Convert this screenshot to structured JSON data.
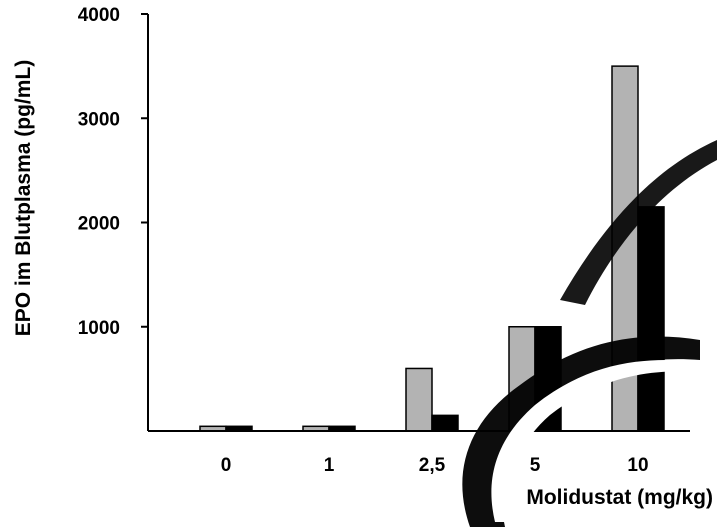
{
  "chart_data": {
    "type": "bar",
    "categories": [
      "0",
      "1",
      "2,5",
      "5",
      "10"
    ],
    "series": [
      {
        "color": "#b3b3b3",
        "values": [
          45,
          45,
          600,
          1000,
          3500
        ]
      },
      {
        "color": "#000000",
        "values": [
          45,
          45,
          150,
          1000,
          2150
        ]
      }
    ],
    "xlabel": "Molidustat (mg/kg)",
    "ylabel": "EPO im Blutplasma (pg/mL)",
    "ylim": [
      0,
      4000
    ],
    "yticks": [
      1000,
      2000,
      3000,
      4000
    ],
    "grid": false,
    "watermark_colors": [
      "#000000",
      "#ffffff"
    ]
  }
}
